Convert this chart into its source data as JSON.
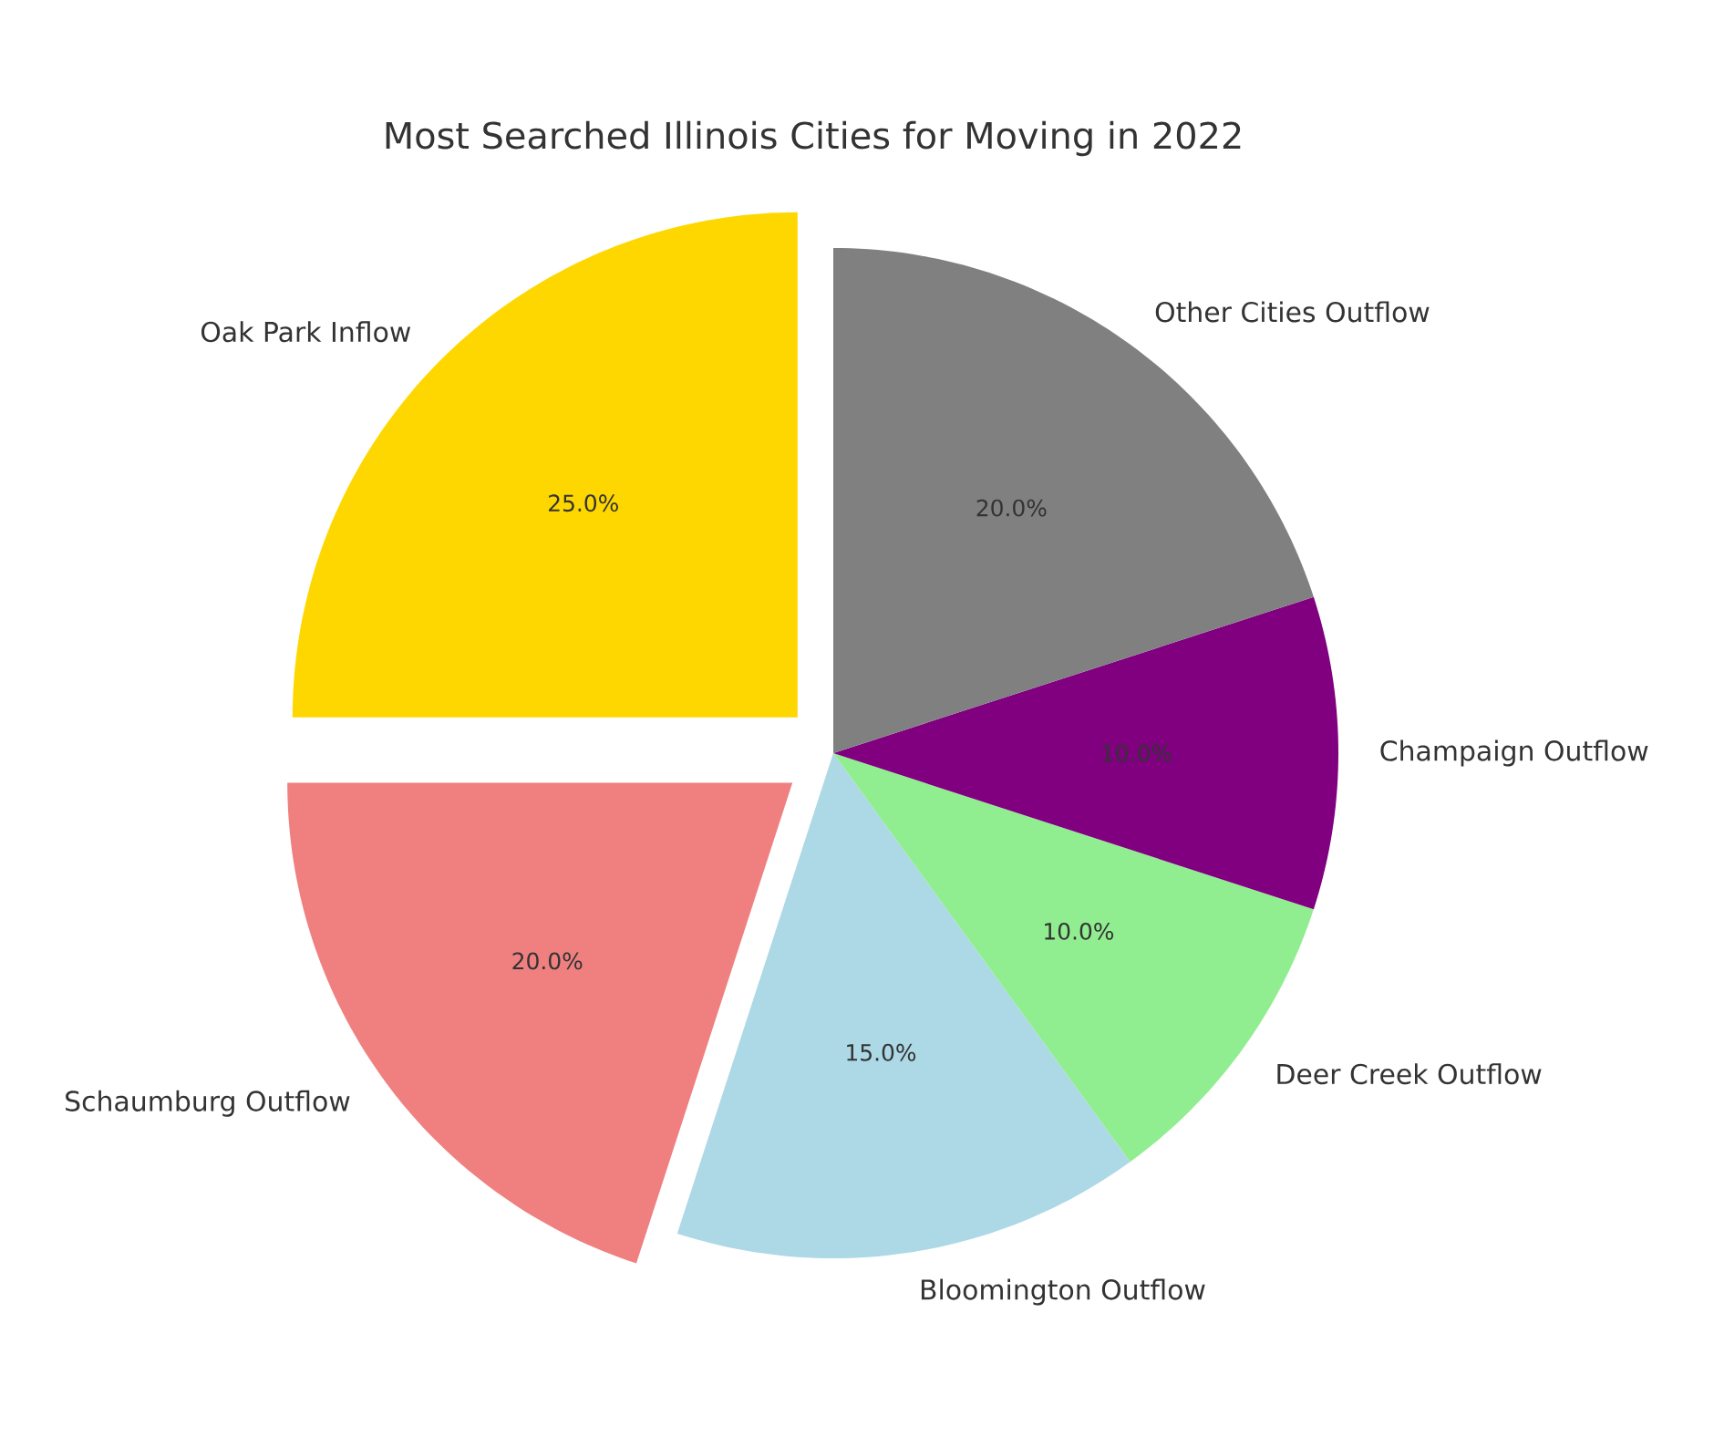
{
  "chart_data": {
    "type": "pie",
    "title": "Most Searched Illinois Cities for Moving in 2022",
    "categories": [
      "Oak Park Inflow",
      "Schaumburg Outflow",
      "Bloomington Outflow",
      "Deer Creek Outflow",
      "Champaign Outflow",
      "Other Cities Outflow"
    ],
    "values": [
      25,
      20,
      15,
      10,
      10,
      20
    ],
    "colors": [
      "#ffd700",
      "#f08080",
      "#add8e6",
      "#90ee90",
      "#800080",
      "#808080"
    ],
    "value_labels": [
      "25.0%",
      "20.0%",
      "15.0%",
      "10.0%",
      "10.0%",
      "20.0%"
    ]
  }
}
